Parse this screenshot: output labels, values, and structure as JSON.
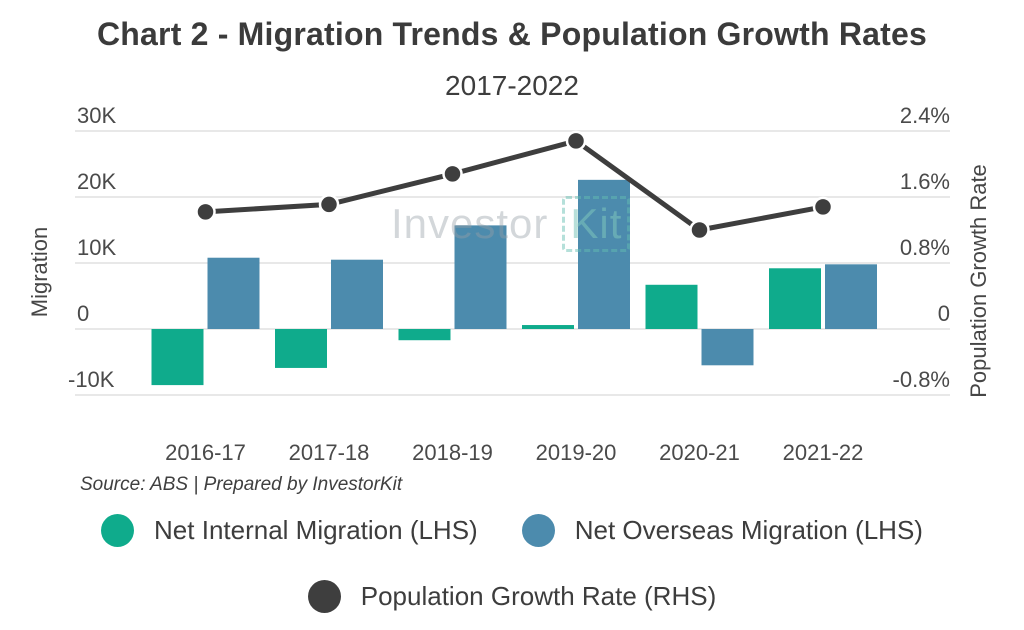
{
  "header": {
    "title": "Chart 2 - Migration Trends & Population Growth Rates",
    "subtitle": "2017-2022"
  },
  "source_note": "Source: ABS | Prepared by InvestorKit",
  "watermark": {
    "part1": "Investor",
    "part2": "Kit"
  },
  "colors": {
    "internal_migration": "#0FAB8C",
    "overseas_migration": "#4C8BAD",
    "growth_line": "#3E3E3E",
    "gridline": "#E1E1E1",
    "text": "#3D3D3D"
  },
  "legend": {
    "items": [
      {
        "label": "Net Internal Migration (LHS)",
        "color": "#0FAB8C",
        "row": 1
      },
      {
        "label": "Net Overseas Migration (LHS)",
        "color": "#4C8BAD",
        "row": 1
      },
      {
        "label": "Population Growth Rate (RHS)",
        "color": "#3E3E3E",
        "row": 2
      }
    ]
  },
  "chart_data": {
    "type": "bar",
    "combo": "dual-axis bar + line",
    "title": "Chart 2 - Migration Trends & Population Growth Rates",
    "subtitle": "2017-2022",
    "categories": [
      "2016-17",
      "2017-18",
      "2018-19",
      "2019-20",
      "2020-21",
      "2021-22"
    ],
    "series": [
      {
        "name": "Net Internal Migration (LHS)",
        "type": "bar",
        "axis": "left",
        "color": "#0FAB8C",
        "values": [
          -8500,
          -5900,
          -1700,
          600,
          6700,
          9200
        ]
      },
      {
        "name": "Net Overseas Migration (LHS)",
        "type": "bar",
        "axis": "left",
        "color": "#4C8BAD",
        "values": [
          10800,
          10500,
          15700,
          22600,
          -5500,
          9800
        ]
      },
      {
        "name": "Population Growth Rate (RHS)",
        "type": "line",
        "axis": "right",
        "color": "#3E3E3E",
        "values": [
          1.42,
          1.51,
          1.88,
          2.28,
          1.2,
          1.48
        ]
      }
    ],
    "left_axis": {
      "label": "Migration",
      "ticks": [
        "30K",
        "20K",
        "10K",
        "0",
        "-10K"
      ],
      "tick_values": [
        30000,
        20000,
        10000,
        0,
        -10000
      ],
      "ylim": [
        -10000,
        30000
      ]
    },
    "right_axis": {
      "label": "Population Growth Rate",
      "ticks": [
        "2.4%",
        "1.6%",
        "0.8%",
        "0",
        "-0.8%"
      ],
      "tick_values": [
        2.4,
        1.6,
        0.8,
        0,
        -0.8
      ],
      "ylim": [
        -0.8,
        2.4
      ]
    },
    "grid": true,
    "legend_position": "bottom"
  }
}
